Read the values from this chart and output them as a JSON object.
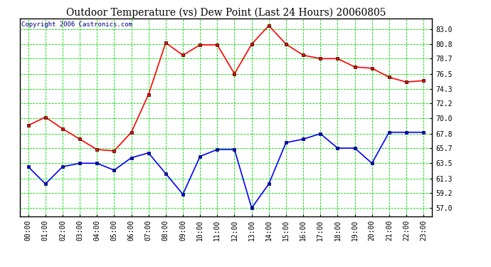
{
  "title": "Outdoor Temperature (vs) Dew Point (Last 24 Hours) 20060805",
  "copyright": "Copyright 2006 Castronics.com",
  "hours": [
    0,
    1,
    2,
    3,
    4,
    5,
    6,
    7,
    8,
    9,
    10,
    11,
    12,
    13,
    14,
    15,
    16,
    17,
    18,
    19,
    20,
    21,
    22,
    23
  ],
  "temp": [
    69.0,
    70.2,
    68.5,
    67.0,
    65.5,
    65.3,
    68.0,
    73.5,
    81.0,
    79.2,
    80.7,
    80.7,
    76.5,
    80.8,
    83.5,
    80.8,
    79.2,
    78.7,
    78.7,
    77.5,
    77.3,
    76.0,
    75.3,
    75.5
  ],
  "dew": [
    63.0,
    60.5,
    63.0,
    63.5,
    63.5,
    62.5,
    64.3,
    65.0,
    62.0,
    59.0,
    64.5,
    65.5,
    65.5,
    57.0,
    60.5,
    66.5,
    67.0,
    67.8,
    65.7,
    65.7,
    63.5,
    68.0,
    68.0,
    68.0
  ],
  "temp_color": "#FF0000",
  "dew_color": "#0000FF",
  "bg_color": "#FFFFFF",
  "plot_bg_color": "#FFFFFF",
  "grid_color": "#00DD00",
  "border_color": "#000000",
  "title_color": "#000000",
  "copyright_color": "#000080",
  "yticks": [
    57.0,
    59.2,
    61.3,
    63.5,
    65.7,
    67.8,
    70.0,
    72.2,
    74.3,
    76.5,
    78.7,
    80.8,
    83.0
  ],
  "ylim": [
    55.8,
    84.5
  ],
  "xlim": [
    -0.5,
    23.5
  ],
  "marker": "s",
  "markersize": 3,
  "linewidth": 1.2,
  "title_fontsize": 10,
  "tick_fontsize": 7,
  "copyright_fontsize": 6.5
}
